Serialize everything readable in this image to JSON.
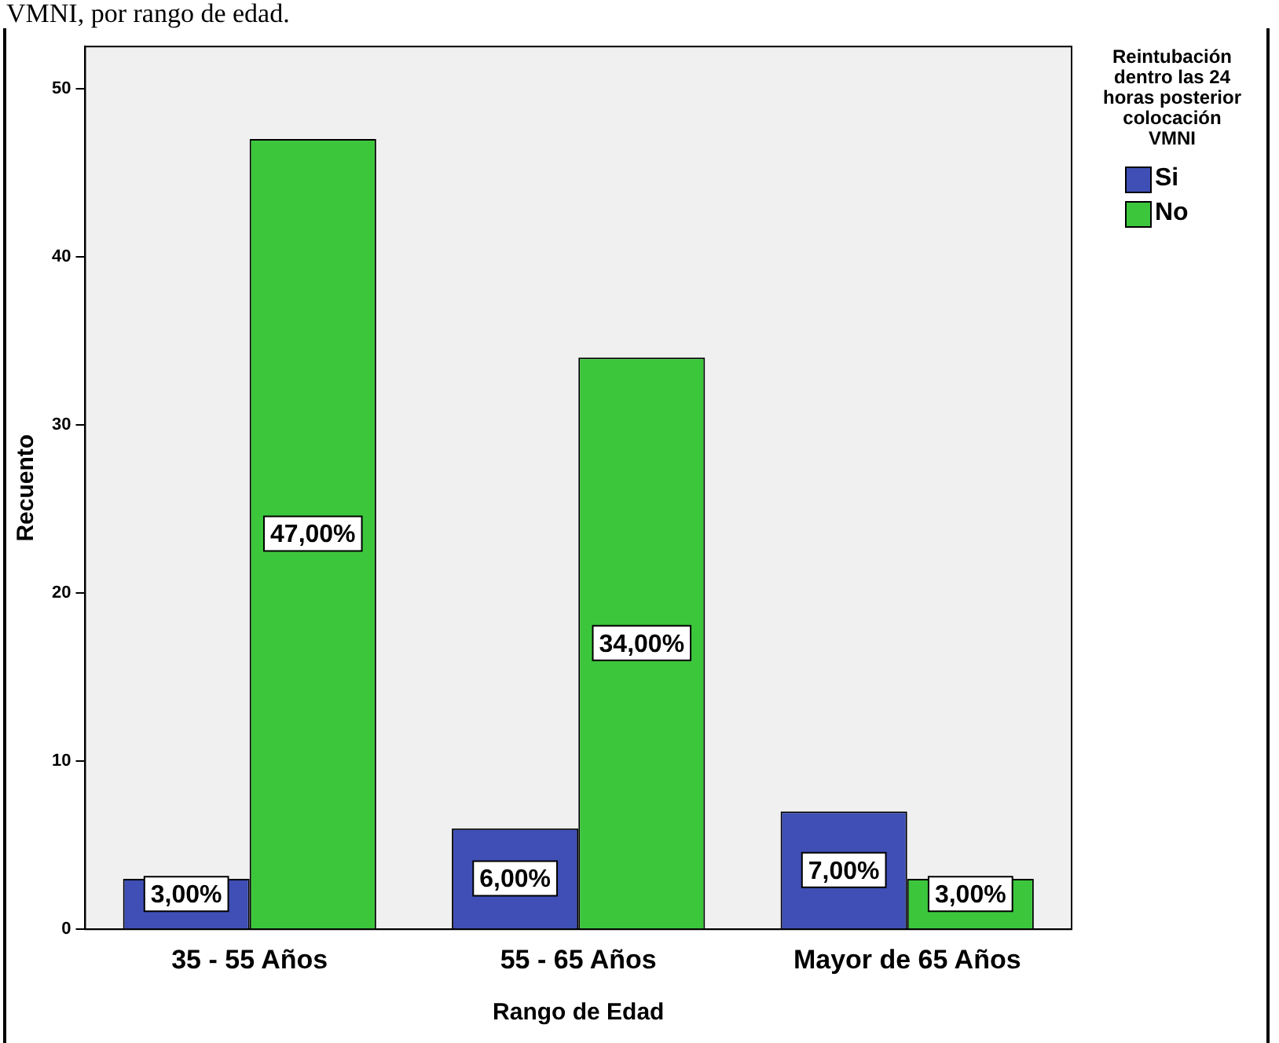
{
  "chart_data": {
    "type": "bar",
    "annotations": [
      "VMNI, por rango de edad."
    ],
    "xlabel": "Rango de Edad",
    "ylabel": "Recuento",
    "legend_title": "Reintubación dentro las 24 horas posterior colocación VMNI",
    "categories": [
      "35 - 55 Años",
      "55 - 65 Años",
      "Mayor de 65 Años"
    ],
    "series": [
      {
        "name": "Si",
        "color": "#3f4fb5",
        "values": [
          3,
          6,
          7
        ],
        "value_labels": [
          "3,00%",
          "6,00%",
          "7,00%"
        ]
      },
      {
        "name": "No",
        "color": "#3cc63c",
        "values": [
          47,
          34,
          3
        ],
        "value_labels": [
          "47,00%",
          "34,00%",
          "3,00%"
        ]
      }
    ],
    "ylim": [
      0,
      52.5
    ],
    "yticks": [
      0,
      10,
      20,
      30,
      40,
      50
    ],
    "grid": false,
    "legend": "top right"
  }
}
